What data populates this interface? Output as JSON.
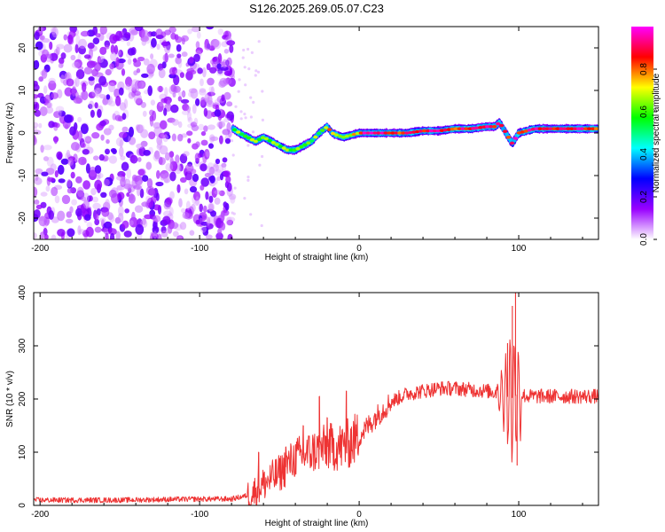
{
  "title": "S126.2025.269.05.07.C23",
  "chart_data": [
    {
      "type": "heatmap",
      "title": "S126.2025.269.05.07.C23",
      "xlabel": "Height of straight line (km)",
      "ylabel": "Frequency (Hz)",
      "xlim": [
        -204,
        150
      ],
      "ylim": [
        -25,
        25
      ],
      "xticks": [
        -200,
        -100,
        0,
        100
      ],
      "yticks": [
        -20,
        -10,
        0,
        10,
        20
      ],
      "noise_region_x": [
        -204,
        -79
      ],
      "noise_region_y": [
        -25,
        25
      ],
      "ridge": {
        "x": [
          -79,
          -75,
          -70,
          -65,
          -60,
          -55,
          -50,
          -45,
          -40,
          -35,
          -30,
          -25,
          -20,
          -17,
          -14,
          -10,
          -5,
          0,
          5,
          10,
          20,
          30,
          40,
          50,
          60,
          70,
          80,
          85,
          88,
          92,
          96,
          100,
          110,
          120,
          130,
          140,
          150
        ],
        "y": [
          1,
          0,
          -1,
          -2,
          -1,
          -2,
          -3,
          -4,
          -4,
          -3,
          -2,
          0,
          1.5,
          0,
          -0.5,
          -1,
          -0.5,
          0,
          0,
          0,
          0,
          0,
          0.5,
          0.5,
          1,
          1,
          1.5,
          1.5,
          2.5,
          0,
          -2.5,
          0,
          1,
          1,
          1,
          1,
          1
        ]
      },
      "colorbar": {
        "label": "Normalized spectral amplitude",
        "range": [
          0,
          1
        ],
        "ticks": [
          "0.0",
          "0.2",
          "0.4",
          "0.6",
          "0.8"
        ],
        "colors": [
          "#ffffff",
          "#9900ff",
          "#0000ff",
          "#00ffff",
          "#00ff00",
          "#ffff00",
          "#ff0000",
          "#ff00ff"
        ]
      }
    },
    {
      "type": "line",
      "xlabel": "Height of straight line (km)",
      "ylabel": "SNR (10 * v/v)",
      "xlim": [
        -204,
        150
      ],
      "ylim": [
        0,
        400
      ],
      "xticks": [
        -200,
        -100,
        0,
        100
      ],
      "yticks": [
        0,
        100,
        200,
        300,
        400
      ],
      "color": "#ee3333",
      "envelope": {
        "x": [
          -204,
          -150,
          -100,
          -80,
          -68,
          -60,
          -50,
          -40,
          -30,
          -20,
          -10,
          0,
          10,
          20,
          30,
          50,
          60,
          80,
          90,
          95,
          100,
          105,
          120,
          150
        ],
        "y": [
          10,
          10,
          12,
          12,
          20,
          40,
          60,
          90,
          100,
          110,
          110,
          130,
          165,
          195,
          210,
          220,
          220,
          215,
          210,
          200,
          210,
          205,
          205,
          205
        ]
      },
      "spikes": [
        {
          "x": -63,
          "y": 100
        },
        {
          "x": -46,
          "y": 110
        },
        {
          "x": -35,
          "y": 150
        },
        {
          "x": -25,
          "y": 205
        },
        {
          "x": -20,
          "y": 165
        },
        {
          "x": -8,
          "y": 215
        },
        {
          "x": 93,
          "y": 305
        },
        {
          "x": 96,
          "y": 375
        },
        {
          "x": 98,
          "y": 400
        },
        {
          "x": 99,
          "y": 75
        }
      ]
    }
  ]
}
